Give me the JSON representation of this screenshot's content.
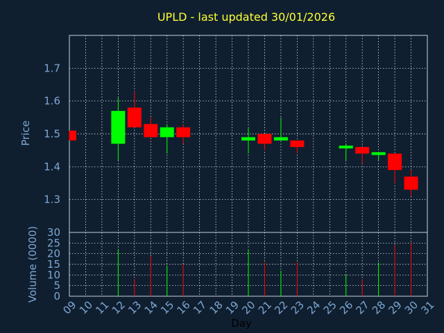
{
  "colors": {
    "background": "#0f1f30",
    "up": "#00ff00",
    "down": "#ff0000",
    "grid": "#ffffff",
    "frame": "#c8d2dc",
    "tick_text": "#7fa7d1",
    "title_text": "#ffff33"
  },
  "chart_data": [
    {
      "type": "candlestick",
      "title": "UPLD - last updated 30/01/2026",
      "ylabel": "Price",
      "xlabel": "",
      "ylim": [
        1.2,
        1.8
      ],
      "yticks": [
        "1.3",
        "1.4",
        "1.5",
        "1.6",
        "1.7"
      ],
      "ytick_values": [
        1.3,
        1.4,
        1.5,
        1.6,
        1.7
      ],
      "grid": true,
      "candles": [
        {
          "day": 9,
          "open": 1.51,
          "close": 1.48,
          "high": 1.51,
          "low": 1.48
        },
        {
          "day": 12,
          "open": 1.47,
          "close": 1.57,
          "high": 1.61,
          "low": 1.42
        },
        {
          "day": 13,
          "open": 1.58,
          "close": 1.52,
          "high": 1.63,
          "low": 1.52
        },
        {
          "day": 14,
          "open": 1.53,
          "close": 1.49,
          "high": 1.55,
          "low": 1.49
        },
        {
          "day": 15,
          "open": 1.49,
          "close": 1.52,
          "high": 1.53,
          "low": 1.44
        },
        {
          "day": 16,
          "open": 1.52,
          "close": 1.49,
          "high": 1.53,
          "low": 1.47
        },
        {
          "day": 20,
          "open": 1.48,
          "close": 1.49,
          "high": 1.52,
          "low": 1.44
        },
        {
          "day": 21,
          "open": 1.5,
          "close": 1.47,
          "high": 1.5,
          "low": 1.45
        },
        {
          "day": 22,
          "open": 1.48,
          "close": 1.49,
          "high": 1.55,
          "low": 1.48
        },
        {
          "day": 23,
          "open": 1.48,
          "close": 1.46,
          "high": 1.48,
          "low": 1.44
        },
        {
          "day": 26,
          "open": 1.46,
          "close": 1.46,
          "high": 1.47,
          "low": 1.42
        },
        {
          "day": 27,
          "open": 1.46,
          "close": 1.44,
          "high": 1.46,
          "low": 1.41
        },
        {
          "day": 28,
          "open": 1.44,
          "close": 1.44,
          "high": 1.44,
          "low": 1.42
        },
        {
          "day": 29,
          "open": 1.44,
          "close": 1.39,
          "high": 1.44,
          "low": 1.35
        },
        {
          "day": 30,
          "open": 1.37,
          "close": 1.33,
          "high": 1.39,
          "low": 1.31
        }
      ]
    },
    {
      "type": "bar",
      "ylabel": "Volume (0000)",
      "xlabel": "Day",
      "ylim": [
        0,
        30
      ],
      "yticks": [
        "0",
        "5",
        "10",
        "15",
        "20",
        "25",
        "30"
      ],
      "ytick_values": [
        0,
        5,
        10,
        15,
        20,
        25,
        30
      ],
      "grid": true,
      "x_categories": [
        "09",
        "10",
        "11",
        "12",
        "13",
        "14",
        "15",
        "16",
        "17",
        "18",
        "19",
        "20",
        "21",
        "22",
        "23",
        "24",
        "25",
        "26",
        "27",
        "28",
        "29",
        "30",
        "31"
      ],
      "bars": [
        {
          "day": 12,
          "value": 22,
          "direction": "up"
        },
        {
          "day": 13,
          "value": 8,
          "direction": "down"
        },
        {
          "day": 14,
          "value": 19,
          "direction": "down"
        },
        {
          "day": 15,
          "value": 14,
          "direction": "up"
        },
        {
          "day": 16,
          "value": 15,
          "direction": "down"
        },
        {
          "day": 20,
          "value": 22,
          "direction": "up"
        },
        {
          "day": 21,
          "value": 16,
          "direction": "down"
        },
        {
          "day": 22,
          "value": 12,
          "direction": "up"
        },
        {
          "day": 23,
          "value": 16,
          "direction": "down"
        },
        {
          "day": 26,
          "value": 10,
          "direction": "up"
        },
        {
          "day": 27,
          "value": 8,
          "direction": "down"
        },
        {
          "day": 28,
          "value": 16,
          "direction": "up"
        },
        {
          "day": 29,
          "value": 24,
          "direction": "down"
        },
        {
          "day": 30,
          "value": 25,
          "direction": "down"
        }
      ]
    }
  ]
}
